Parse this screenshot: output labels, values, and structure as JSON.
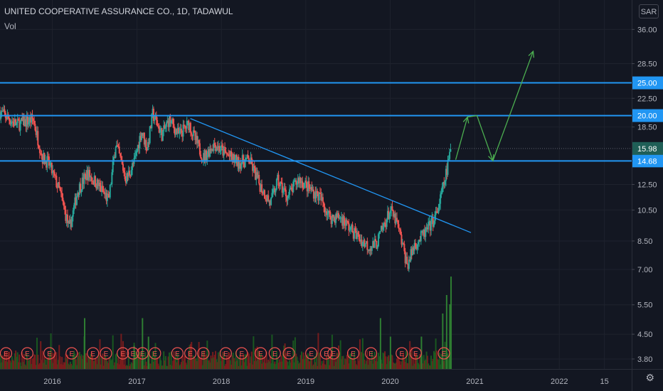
{
  "header": {
    "title": "UNITED COOPERATIVE ASSURANCE CO., 1D, TADAWUL",
    "indicator": "Vol"
  },
  "currency_label": "SAR",
  "colors": {
    "background": "#131722",
    "up": "#26a69a",
    "down": "#ef5350",
    "hline": "#2196f3",
    "arrow": "#4caf50",
    "axis_text": "#b2b5be"
  },
  "chart_data": {
    "type": "candlestick",
    "y_scale": "log",
    "ylim": [
      3.55,
      44.0
    ],
    "y_ticks": [
      3.8,
      4.5,
      5.5,
      7.0,
      8.5,
      10.5,
      12.5,
      18.5,
      22.5,
      28.5,
      36.0
    ],
    "y_tick_labels": [
      "3.80",
      "4.50",
      "5.50",
      "7.00",
      "8.50",
      "10.50",
      "12.50",
      "18.50",
      "22.50",
      "28.50",
      "36.00"
    ],
    "x_ticks": [
      {
        "label": "2016",
        "date": "2016-01-01"
      },
      {
        "label": "2017",
        "date": "2017-01-01"
      },
      {
        "label": "2018",
        "date": "2018-01-01"
      },
      {
        "label": "2019",
        "date": "2019-01-01"
      },
      {
        "label": "2020",
        "date": "2020-01-01"
      },
      {
        "label": "2021",
        "date": "2021-01-01"
      },
      {
        "label": "2022",
        "date": "2022-01-01"
      },
      {
        "label": "15",
        "date": "2022-07-15"
      }
    ],
    "x_range": [
      "2015-05-20",
      "2022-11-10"
    ],
    "price_path": [
      [
        "2015-05-20",
        20.5
      ],
      [
        "2015-08-01",
        18.8
      ],
      [
        "2015-10-10",
        19.5
      ],
      [
        "2015-11-20",
        15.0
      ],
      [
        "2015-12-15",
        14.5
      ],
      [
        "2016-02-01",
        12.0
      ],
      [
        "2016-03-15",
        9.2
      ],
      [
        "2016-04-20",
        12.0
      ],
      [
        "2016-06-01",
        13.5
      ],
      [
        "2016-07-15",
        12.5
      ],
      [
        "2016-09-01",
        11.2
      ],
      [
        "2016-10-01",
        16.5
      ],
      [
        "2016-11-15",
        13.0
      ],
      [
        "2016-12-20",
        14.5
      ],
      [
        "2017-01-20",
        18.0
      ],
      [
        "2017-02-15",
        16.0
      ],
      [
        "2017-03-10",
        20.2
      ],
      [
        "2017-04-20",
        17.5
      ],
      [
        "2017-05-20",
        19.5
      ],
      [
        "2017-07-01",
        17.5
      ],
      [
        "2017-08-15",
        19.0
      ],
      [
        "2017-09-01",
        17.5
      ],
      [
        "2017-10-15",
        15.0
      ],
      [
        "2017-12-01",
        16.5
      ],
      [
        "2018-01-15",
        15.5
      ],
      [
        "2018-03-15",
        14.5
      ],
      [
        "2018-05-01",
        14.8
      ],
      [
        "2018-06-15",
        12.5
      ],
      [
        "2018-08-01",
        11.0
      ],
      [
        "2018-09-01",
        12.8
      ],
      [
        "2018-10-15",
        11.5
      ],
      [
        "2018-12-01",
        13.0
      ],
      [
        "2019-01-15",
        12.2
      ],
      [
        "2019-03-01",
        11.5
      ],
      [
        "2019-04-15",
        10.0
      ],
      [
        "2019-06-01",
        10.0
      ],
      [
        "2019-07-15",
        9.2
      ],
      [
        "2019-09-01",
        8.5
      ],
      [
        "2019-10-01",
        8.2
      ],
      [
        "2019-11-01",
        8.3
      ],
      [
        "2020-01-01",
        10.5
      ],
      [
        "2020-02-01",
        9.5
      ],
      [
        "2020-03-15",
        7.2
      ],
      [
        "2020-04-15",
        8.3
      ],
      [
        "2020-05-20",
        8.8
      ],
      [
        "2020-06-20",
        9.4
      ],
      [
        "2020-07-20",
        10.2
      ],
      [
        "2020-08-20",
        12.5
      ],
      [
        "2020-09-20",
        15.98
      ]
    ],
    "volume_spikes": [
      [
        "2016-12-20",
        0.25
      ],
      [
        "2017-01-25",
        0.55
      ],
      [
        "2016-05-20",
        0.55
      ],
      [
        "2017-02-20",
        0.35
      ],
      [
        "2019-11-20",
        0.55
      ],
      [
        "2020-01-02",
        0.35
      ],
      [
        "2020-05-15",
        0.35
      ],
      [
        "2020-08-15",
        0.6
      ],
      [
        "2020-09-01",
        0.8
      ],
      [
        "2020-09-20",
        1.0
      ],
      [
        "2020-09-15",
        0.7
      ]
    ],
    "earnings_markers": [
      "2015-06-15",
      "2015-09-15",
      "2015-12-20",
      "2016-03-25",
      "2016-06-25",
      "2016-08-20",
      "2016-11-01",
      "2016-12-15",
      "2017-01-25",
      "2017-03-20",
      "2017-06-25",
      "2017-08-20",
      "2017-10-15",
      "2018-01-20",
      "2018-03-30",
      "2018-06-20",
      "2018-08-20",
      "2018-10-20",
      "2019-01-25",
      "2019-03-30",
      "2019-05-01",
      "2019-07-25",
      "2019-10-10",
      "2020-02-20",
      "2020-04-20",
      "2020-08-20"
    ],
    "earnings_label": "E",
    "horizontal_levels": [
      {
        "value": 25.0,
        "label": "25.00"
      },
      {
        "value": 20.0,
        "label": "20.00"
      },
      {
        "value": 14.68,
        "label": "14.68"
      }
    ],
    "last_price": {
      "value": 15.98,
      "label": "15.98"
    },
    "trendline": [
      [
        "2017-08-20",
        19.6
      ],
      [
        "2020-12-15",
        9.0
      ]
    ],
    "projection_path": [
      [
        "2020-10-10",
        14.8
      ],
      [
        "2020-11-30",
        19.8
      ],
      [
        "2021-01-10",
        20.0
      ],
      [
        "2021-03-20",
        14.7
      ],
      [
        "2021-09-10",
        31.0
      ]
    ]
  }
}
